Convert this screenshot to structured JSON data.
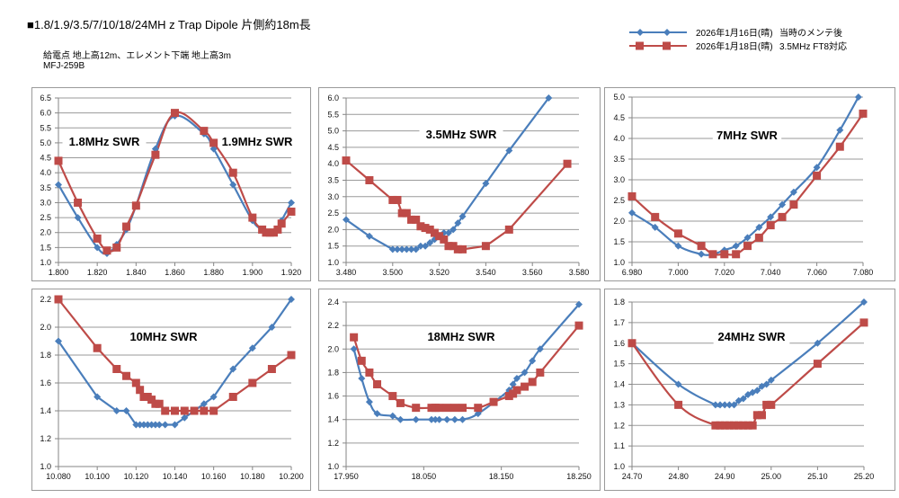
{
  "header": {
    "title": "■1.8/1.9/3.5/7/10/18/24MH z  Trap Dipole 片側約18m長",
    "note1": "給電点 地上高12m、エレメント下端 地上高3m",
    "note2": "MFJ-259B"
  },
  "legend": [
    {
      "date": "2026年1月16日(晴)",
      "label": "当時のメンテ後",
      "color": "#4a7ebb",
      "marker": "diamond"
    },
    {
      "date": "2026年1月18日(晴)",
      "label": "3.5MHz FT8対応",
      "color": "#be4b48",
      "marker": "square"
    }
  ],
  "chart_data": [
    {
      "type": "line",
      "title": "1.8MHz SWR",
      "title2": "1.9MHz SWR",
      "xlabel": "",
      "ylabel": "",
      "xlim": [
        1.8,
        1.92
      ],
      "ylim": [
        1.0,
        6.5
      ],
      "xticks": [
        1.8,
        1.82,
        1.84,
        1.86,
        1.88,
        1.9,
        1.92
      ],
      "xtick_labels": [
        "1.800",
        "1.820",
        "1.840",
        "1.860",
        "1.880",
        "1.900",
        "1.920"
      ],
      "yticks": [
        1.0,
        1.5,
        2.0,
        2.5,
        3.0,
        3.5,
        4.0,
        4.5,
        5.0,
        5.5,
        6.0,
        6.5
      ],
      "ytick_labels": [
        "1.0",
        "1.5",
        "2.0",
        "2.5",
        "3.0",
        "3.5",
        "4.0",
        "4.5",
        "5.0",
        "5.5",
        "6.0",
        "6.5"
      ],
      "grid": true,
      "smooth": true,
      "series": [
        {
          "name": "2026年1月16日(晴) 当時のメンテ後",
          "x": [
            1.8,
            1.81,
            1.82,
            1.825,
            1.83,
            1.835,
            1.84,
            1.85,
            1.86,
            1.875,
            1.88,
            1.89,
            1.9,
            1.905,
            1.907,
            1.909,
            1.911,
            1.913,
            1.915,
            1.92
          ],
          "y": [
            3.6,
            2.5,
            1.5,
            1.3,
            1.6,
            2.1,
            2.9,
            4.8,
            5.9,
            5.3,
            4.8,
            3.6,
            2.4,
            2.1,
            2.0,
            2.0,
            2.0,
            2.1,
            2.4,
            3.0
          ]
        },
        {
          "name": "2026年1月18日(晴) 3.5MHz FT8対応",
          "x": [
            1.8,
            1.81,
            1.82,
            1.825,
            1.83,
            1.835,
            1.84,
            1.85,
            1.86,
            1.875,
            1.88,
            1.89,
            1.9,
            1.905,
            1.907,
            1.909,
            1.911,
            1.913,
            1.915,
            1.92
          ],
          "y": [
            4.4,
            3.0,
            1.8,
            1.4,
            1.5,
            2.2,
            2.9,
            4.6,
            6.0,
            5.4,
            5.0,
            4.0,
            2.5,
            2.1,
            2.0,
            2.0,
            2.0,
            2.1,
            2.3,
            2.7
          ]
        }
      ]
    },
    {
      "type": "line",
      "title": "3.5MHz SWR",
      "xlabel": "",
      "ylabel": "",
      "xlim": [
        3.48,
        3.58
      ],
      "ylim": [
        1.0,
        6.0
      ],
      "xticks": [
        3.48,
        3.5,
        3.52,
        3.54,
        3.56,
        3.58
      ],
      "xtick_labels": [
        "3.480",
        "3.500",
        "3.520",
        "3.540",
        "3.560",
        "3.580"
      ],
      "yticks": [
        1.0,
        1.5,
        2.0,
        2.5,
        3.0,
        3.5,
        4.0,
        4.5,
        5.0,
        5.5,
        6.0
      ],
      "ytick_labels": [
        "1.0",
        "1.5",
        "2.0",
        "2.5",
        "3.0",
        "3.5",
        "4.0",
        "4.5",
        "5.0",
        "5.5",
        "6.0"
      ],
      "grid": true,
      "smooth": false,
      "series": [
        {
          "name": "2026年1月16日(晴) 当時のメンテ後",
          "x": [
            3.48,
            3.49,
            3.5,
            3.502,
            3.504,
            3.506,
            3.508,
            3.51,
            3.512,
            3.514,
            3.516,
            3.518,
            3.52,
            3.522,
            3.524,
            3.526,
            3.528,
            3.53,
            3.54,
            3.55,
            3.567
          ],
          "y": [
            2.3,
            1.8,
            1.4,
            1.4,
            1.4,
            1.4,
            1.4,
            1.4,
            1.5,
            1.5,
            1.6,
            1.7,
            1.8,
            1.9,
            1.9,
            2.0,
            2.2,
            2.4,
            3.4,
            4.4,
            6.0
          ]
        },
        {
          "name": "2026年1月18日(晴) 3.5MHz FT8対応",
          "x": [
            3.48,
            3.49,
            3.5,
            3.502,
            3.504,
            3.506,
            3.508,
            3.51,
            3.512,
            3.514,
            3.516,
            3.518,
            3.52,
            3.522,
            3.524,
            3.526,
            3.528,
            3.53,
            3.54,
            3.55,
            3.575
          ],
          "y": [
            4.1,
            3.5,
            2.9,
            2.9,
            2.5,
            2.5,
            2.3,
            2.3,
            2.1,
            2.05,
            2.0,
            1.9,
            1.8,
            1.7,
            1.5,
            1.5,
            1.4,
            1.4,
            1.5,
            2.0,
            4.0
          ]
        }
      ]
    },
    {
      "type": "line",
      "title": "7MHz SWR",
      "xlabel": "",
      "ylabel": "",
      "xlim": [
        6.98,
        7.08
      ],
      "ylim": [
        1.0,
        5.0
      ],
      "xticks": [
        6.98,
        7.0,
        7.02,
        7.04,
        7.06,
        7.08
      ],
      "xtick_labels": [
        "6.980",
        "7.000",
        "7.020",
        "7.040",
        "7.060",
        "7.080"
      ],
      "yticks": [
        1.0,
        1.5,
        2.0,
        2.5,
        3.0,
        3.5,
        4.0,
        4.5,
        5.0
      ],
      "ytick_labels": [
        "1.0",
        "1.5",
        "2.0",
        "2.5",
        "3.0",
        "3.5",
        "4.0",
        "4.5",
        "5.0"
      ],
      "grid": true,
      "smooth": true,
      "series": [
        {
          "name": "2026年1月16日(晴) 当時のメンテ後",
          "x": [
            6.98,
            6.99,
            7.0,
            7.01,
            7.015,
            7.02,
            7.025,
            7.03,
            7.035,
            7.04,
            7.045,
            7.05,
            7.06,
            7.07,
            7.078
          ],
          "y": [
            2.2,
            1.85,
            1.4,
            1.2,
            1.2,
            1.3,
            1.4,
            1.6,
            1.85,
            2.1,
            2.4,
            2.7,
            3.3,
            4.2,
            5.0
          ]
        },
        {
          "name": "2026年1月18日(晴) 3.5MHz FT8対応",
          "x": [
            6.98,
            6.99,
            7.0,
            7.01,
            7.015,
            7.02,
            7.025,
            7.03,
            7.035,
            7.04,
            7.045,
            7.05,
            7.06,
            7.07,
            7.08
          ],
          "y": [
            2.6,
            2.1,
            1.7,
            1.4,
            1.2,
            1.2,
            1.2,
            1.4,
            1.6,
            1.9,
            2.1,
            2.4,
            3.1,
            3.8,
            4.6
          ]
        }
      ]
    },
    {
      "type": "line",
      "title": "10MHz SWR",
      "xlabel": "",
      "ylabel": "",
      "xlim": [
        10.08,
        10.2
      ],
      "ylim": [
        1.0,
        2.2
      ],
      "xticks": [
        10.08,
        10.1,
        10.12,
        10.14,
        10.16,
        10.18,
        10.2
      ],
      "xtick_labels": [
        "10.080",
        "10.100",
        "10.120",
        "10.140",
        "10.160",
        "10.180",
        "10.200"
      ],
      "yticks": [
        1.0,
        1.2,
        1.4,
        1.6,
        1.8,
        2.0,
        2.2
      ],
      "ytick_labels": [
        "1.0",
        "1.2",
        "1.4",
        "1.6",
        "1.8",
        "2.0",
        "2.2"
      ],
      "grid": true,
      "smooth": false,
      "series": [
        {
          "name": "2026年1月16日(晴) 当時のメンテ後",
          "x": [
            10.08,
            10.1,
            10.11,
            10.115,
            10.12,
            10.122,
            10.124,
            10.126,
            10.128,
            10.13,
            10.132,
            10.135,
            10.14,
            10.145,
            10.15,
            10.155,
            10.16,
            10.17,
            10.18,
            10.19,
            10.2
          ],
          "y": [
            1.9,
            1.5,
            1.4,
            1.4,
            1.3,
            1.3,
            1.3,
            1.3,
            1.3,
            1.3,
            1.3,
            1.3,
            1.3,
            1.35,
            1.4,
            1.45,
            1.5,
            1.7,
            1.85,
            2.0,
            2.2
          ]
        },
        {
          "name": "2026年1月18日(晴) 3.5MHz FT8対応",
          "x": [
            10.08,
            10.1,
            10.11,
            10.115,
            10.12,
            10.122,
            10.124,
            10.126,
            10.128,
            10.13,
            10.132,
            10.135,
            10.14,
            10.145,
            10.15,
            10.155,
            10.16,
            10.17,
            10.18,
            10.19,
            10.2
          ],
          "y": [
            2.2,
            1.85,
            1.7,
            1.65,
            1.6,
            1.55,
            1.5,
            1.5,
            1.48,
            1.45,
            1.45,
            1.4,
            1.4,
            1.4,
            1.4,
            1.4,
            1.4,
            1.5,
            1.6,
            1.7,
            1.8
          ]
        }
      ]
    },
    {
      "type": "line",
      "title": "18MHz SWR",
      "xlabel": "",
      "ylabel": "",
      "xlim": [
        17.95,
        18.25
      ],
      "ylim": [
        1.0,
        2.4
      ],
      "xticks": [
        17.95,
        18.05,
        18.15,
        18.25
      ],
      "xtick_labels": [
        "17.950",
        "18.050",
        "18.150",
        "18.250"
      ],
      "yticks": [
        1.0,
        1.2,
        1.4,
        1.6,
        1.8,
        2.0,
        2.2,
        2.4
      ],
      "ytick_labels": [
        "1.0",
        "1.2",
        "1.4",
        "1.6",
        "1.8",
        "2.0",
        "2.2",
        "2.4"
      ],
      "grid": true,
      "smooth": true,
      "series": [
        {
          "name": "2026年1月16日(晴) 当時のメンテ後",
          "x": [
            17.96,
            17.97,
            17.98,
            17.99,
            18.01,
            18.02,
            18.04,
            18.06,
            18.065,
            18.07,
            18.08,
            18.09,
            18.1,
            18.12,
            18.16,
            18.165,
            18.17,
            18.18,
            18.19,
            18.2,
            18.25
          ],
          "y": [
            2.0,
            1.75,
            1.55,
            1.45,
            1.43,
            1.4,
            1.4,
            1.4,
            1.4,
            1.4,
            1.4,
            1.4,
            1.4,
            1.45,
            1.65,
            1.7,
            1.75,
            1.8,
            1.9,
            2.0,
            2.38
          ]
        },
        {
          "name": "2026年1月18日(晴) 3.5MHz FT8対応",
          "x": [
            17.96,
            17.97,
            17.98,
            17.99,
            18.01,
            18.02,
            18.04,
            18.06,
            18.065,
            18.07,
            18.08,
            18.09,
            18.1,
            18.12,
            18.14,
            18.16,
            18.165,
            18.17,
            18.18,
            18.19,
            18.2,
            18.25
          ],
          "y": [
            2.1,
            1.9,
            1.8,
            1.7,
            1.6,
            1.54,
            1.5,
            1.5,
            1.5,
            1.5,
            1.5,
            1.5,
            1.5,
            1.5,
            1.55,
            1.6,
            1.62,
            1.65,
            1.68,
            1.72,
            1.8,
            2.2
          ]
        }
      ]
    },
    {
      "type": "line",
      "title": "24MHz SWR",
      "xlabel": "",
      "ylabel": "",
      "xlim": [
        24.7,
        25.2
      ],
      "ylim": [
        1.0,
        1.8
      ],
      "xticks": [
        24.7,
        24.8,
        24.9,
        25.0,
        25.1,
        25.2
      ],
      "xtick_labels": [
        "24.70",
        "24.80",
        "24.90",
        "25.00",
        "25.10",
        "25.20"
      ],
      "yticks": [
        1.0,
        1.1,
        1.2,
        1.3,
        1.4,
        1.5,
        1.6,
        1.7,
        1.8
      ],
      "ytick_labels": [
        "1.0",
        "1.1",
        "1.2",
        "1.3",
        "1.4",
        "1.5",
        "1.6",
        "1.7",
        "1.8"
      ],
      "grid": true,
      "smooth": true,
      "series": [
        {
          "name": "2026年1月16日(晴) 当時のメンテ後",
          "x": [
            24.7,
            24.8,
            24.88,
            24.89,
            24.9,
            24.91,
            24.92,
            24.93,
            24.94,
            24.95,
            24.96,
            24.97,
            24.98,
            24.99,
            25.0,
            25.1,
            25.2
          ],
          "y": [
            1.6,
            1.4,
            1.3,
            1.3,
            1.3,
            1.3,
            1.3,
            1.32,
            1.33,
            1.35,
            1.36,
            1.37,
            1.39,
            1.4,
            1.42,
            1.6,
            1.8
          ]
        },
        {
          "name": "2026年1月18日(晴) 3.5MHz FT8対応",
          "x": [
            24.7,
            24.8,
            24.88,
            24.89,
            24.9,
            24.91,
            24.92,
            24.93,
            24.94,
            24.95,
            24.96,
            24.97,
            24.98,
            24.99,
            25.0,
            25.1,
            25.2
          ],
          "y": [
            1.6,
            1.3,
            1.2,
            1.2,
            1.2,
            1.2,
            1.2,
            1.2,
            1.2,
            1.2,
            1.2,
            1.25,
            1.25,
            1.3,
            1.3,
            1.5,
            1.7
          ]
        }
      ]
    }
  ]
}
